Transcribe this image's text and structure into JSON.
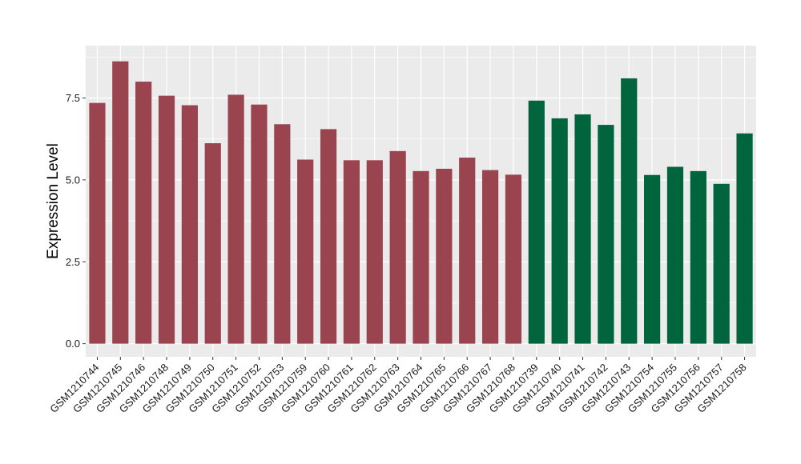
{
  "chart_data": {
    "type": "bar",
    "title": "",
    "xlabel": "",
    "ylabel": "Expression Level",
    "ylim": [
      -0.4,
      9.1
    ],
    "yticks": [
      0.0,
      2.5,
      5.0,
      7.5
    ],
    "ytick_labels": [
      "0.0",
      "2.5",
      "5.0",
      "7.5"
    ],
    "grid": true,
    "legend": "none",
    "categories": [
      "GSM1210744",
      "GSM1210745",
      "GSM1210746",
      "GSM1210748",
      "GSM1210749",
      "GSM1210750",
      "GSM1210751",
      "GSM1210752",
      "GSM1210753",
      "GSM1210759",
      "GSM1210760",
      "GSM1210761",
      "GSM1210762",
      "GSM1210763",
      "GSM1210764",
      "GSM1210765",
      "GSM1210766",
      "GSM1210767",
      "GSM1210768",
      "GSM1210739",
      "GSM1210740",
      "GSM1210741",
      "GSM1210742",
      "GSM1210743",
      "GSM1210754",
      "GSM1210755",
      "GSM1210756",
      "GSM1210757",
      "GSM1210758"
    ],
    "values": [
      7.35,
      8.62,
      8.0,
      7.57,
      7.28,
      6.12,
      7.6,
      7.3,
      6.7,
      5.62,
      6.55,
      5.6,
      5.6,
      5.88,
      5.27,
      5.34,
      5.68,
      5.3,
      5.16,
      7.42,
      6.88,
      7.0,
      6.68,
      8.1,
      5.15,
      5.4,
      5.27,
      4.88,
      6.42
    ],
    "groups": [
      0,
      0,
      0,
      0,
      0,
      0,
      0,
      0,
      0,
      0,
      0,
      0,
      0,
      0,
      0,
      0,
      0,
      0,
      0,
      1,
      1,
      1,
      1,
      1,
      1,
      1,
      1,
      1,
      1
    ],
    "group_colors": [
      "#9a4450",
      "#00643c"
    ],
    "panel_background": "#ebebeb",
    "grid_color": "#ffffff"
  }
}
